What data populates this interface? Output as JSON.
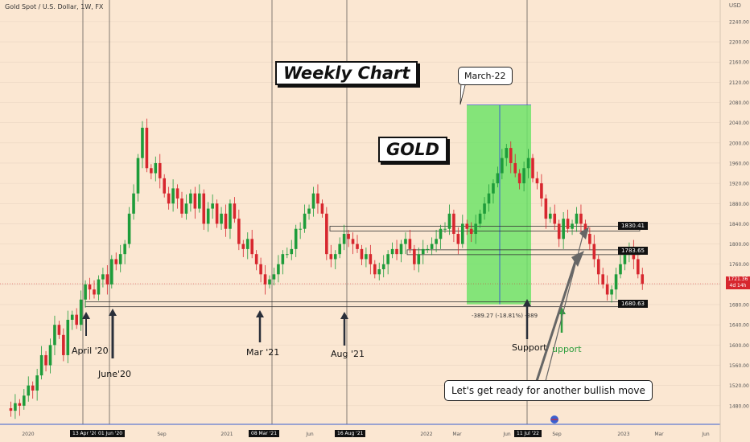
{
  "header": {
    "symbol": "Gold Spot / U.S. Dollar, 1W, FX",
    "currency": "USD"
  },
  "annotations": {
    "weekly_chart": "Weekly Chart",
    "gold": "GOLD",
    "march22": "March-22",
    "april20": "April '20",
    "june20": "June'20",
    "mar21": "Mar '21",
    "aug21": "Aug '21",
    "support": "Support",
    "support_partial": "upport",
    "bullish": "Let's get ready for another bullish move",
    "measure": "-389.27 (-18.81%) -389"
  },
  "price_levels": [
    {
      "label": "1830.41",
      "value": 1830.41
    },
    {
      "label": "1783.65",
      "value": 1783.65
    },
    {
      "label": "1680.63",
      "value": 1680.63
    }
  ],
  "current_price": {
    "label": "1721.36",
    "sub": "4d 14h",
    "value": 1721.36
  },
  "date_markers": [
    "13 Apr '20",
    "01 Jun '20",
    "08 Mar '21",
    "16 Aug '21",
    "11 Jul '22"
  ],
  "colors": {
    "up": "#1e9c3a",
    "down": "#d7272e",
    "highlight": "#6fe36a",
    "background": "#fbe7d2",
    "support_arrow": "#2e9e3e"
  },
  "chart_data": {
    "type": "candlestick",
    "interval": "1W",
    "ylim": [
      1440,
      2270
    ],
    "y_ticks": [
      1480,
      1520,
      1560,
      1600,
      1640,
      1680,
      1720,
      1760,
      1800,
      1840,
      1880,
      1920,
      1960,
      2000,
      2040,
      2080,
      2120,
      2160,
      2200,
      2240
    ],
    "x_ticks": [
      "2020",
      "Jun",
      "Sep",
      "2021",
      "Mar",
      "Jun",
      "Sep",
      "2022",
      "Mar",
      "Jun",
      "Sep",
      "2023",
      "Mar",
      "Jun"
    ],
    "price_path": [
      1475,
      1470,
      1485,
      1480,
      1500,
      1520,
      1510,
      1540,
      1580,
      1560,
      1600,
      1640,
      1620,
      1580,
      1650,
      1660,
      1640,
      1690,
      1720,
      1710,
      1700,
      1730,
      1740,
      1720,
      1770,
      1760,
      1780,
      1800,
      1860,
      1900,
      1970,
      2030,
      1950,
      1940,
      1960,
      1930,
      1900,
      1880,
      1910,
      1890,
      1860,
      1880,
      1900,
      1870,
      1900,
      1840,
      1870,
      1880,
      1840,
      1860,
      1830,
      1880,
      1850,
      1800,
      1790,
      1810,
      1780,
      1760,
      1740,
      1720,
      1730,
      1740,
      1760,
      1780,
      1780,
      1790,
      1830,
      1830,
      1860,
      1870,
      1900,
      1880,
      1860,
      1780,
      1770,
      1780,
      1800,
      1820,
      1810,
      1800,
      1790,
      1770,
      1780,
      1760,
      1740,
      1750,
      1760,
      1780,
      1790,
      1780,
      1800,
      1810,
      1790,
      1760,
      1780,
      1790,
      1790,
      1800,
      1810,
      1830,
      1830,
      1860,
      1820,
      1800,
      1840,
      1830,
      1820,
      1840,
      1860,
      1880,
      1900,
      1920,
      1940,
      1970,
      1990,
      1960,
      1940,
      1920,
      1950,
      1970,
      1930,
      1920,
      1890,
      1850,
      1860,
      1840,
      1810,
      1850,
      1830,
      1840,
      1860,
      1840,
      1820,
      1800,
      1770,
      1740,
      1720,
      1700,
      1710,
      1740,
      1760,
      1780,
      1790,
      1770,
      1740,
      1721
    ],
    "levels": [
      1830.41,
      1783.65,
      1680.63
    ],
    "zone": {
      "from_week": 126,
      "to_week": 146,
      "top": 2075,
      "bottom": 1680.63
    }
  }
}
